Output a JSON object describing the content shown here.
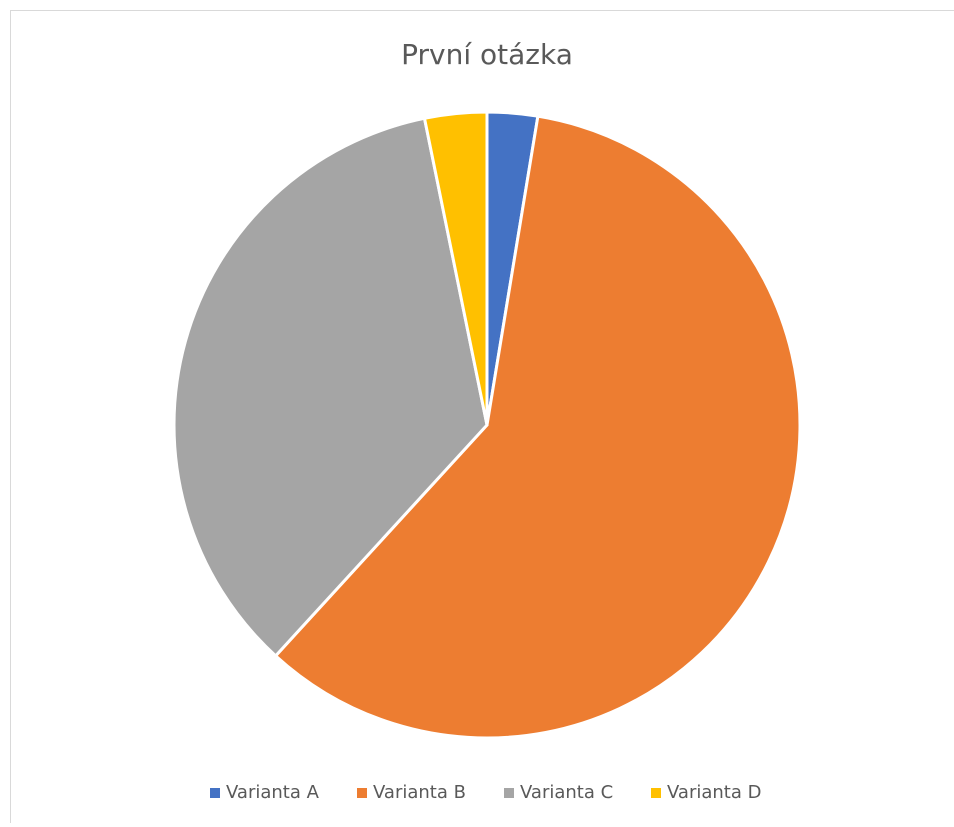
{
  "chart_data": {
    "type": "pie",
    "title": "První otázka",
    "categories": [
      "Varianta A",
      "Varianta B",
      "Varianta C",
      "Varianta D"
    ],
    "values": [
      2.6,
      59.2,
      35,
      3.2
    ],
    "colors": [
      "#4472c4",
      "#ed7d31",
      "#a5a5a5",
      "#ffc000"
    ],
    "legend": "bottom"
  }
}
